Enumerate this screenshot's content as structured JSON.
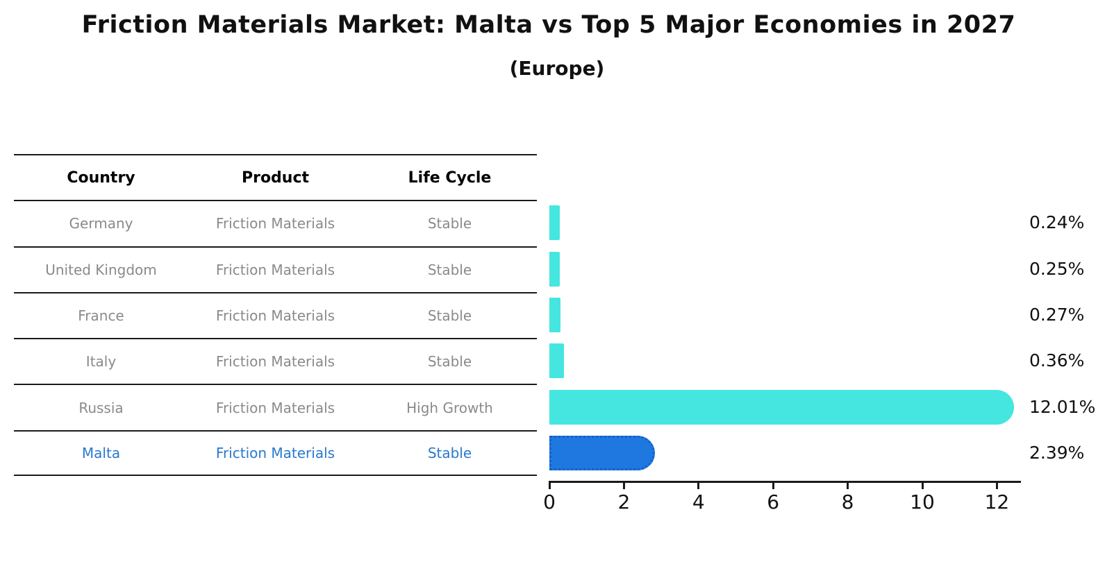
{
  "title": "Friction Materials Market: Malta vs Top 5 Major Economies in 2027",
  "subtitle": "(Europe)",
  "table": {
    "headers": [
      "Country",
      "Product",
      "Life Cycle"
    ],
    "rows": [
      {
        "country": "Germany",
        "product": "Friction Materials",
        "life_cycle": "Stable",
        "highlight": false
      },
      {
        "country": "United Kingdom",
        "product": "Friction Materials",
        "life_cycle": "Stable",
        "highlight": false
      },
      {
        "country": "France",
        "product": "Friction Materials",
        "life_cycle": "Stable",
        "highlight": false
      },
      {
        "country": "Italy",
        "product": "Friction Materials",
        "life_cycle": "Stable",
        "highlight": false
      },
      {
        "country": "Russia",
        "product": "Friction Materials",
        "life_cycle": "High Growth",
        "highlight": false
      },
      {
        "country": "Malta",
        "product": "Friction Materials",
        "life_cycle": "Stable",
        "highlight": true
      }
    ]
  },
  "chart_data": {
    "type": "bar",
    "orientation": "horizontal",
    "title": "Friction Materials Market: Malta vs Top 5 Major Economies in 2027 (Europe)",
    "categories": [
      "Germany",
      "United Kingdom",
      "France",
      "Italy",
      "Russia",
      "Malta"
    ],
    "values": [
      0.24,
      0.25,
      0.27,
      0.36,
      12.01,
      2.39
    ],
    "value_labels": [
      "0.24%",
      "0.25%",
      "0.27%",
      "0.36%",
      "12.01%",
      "2.39%"
    ],
    "highlight_index": 5,
    "xlim": [
      0,
      12.65
    ],
    "x_ticks": [
      0,
      2,
      4,
      6,
      8,
      10,
      12
    ],
    "grid": false,
    "legend": false
  },
  "colors": {
    "bar": "#45E6DF",
    "highlight_bar": "#1E78E0",
    "highlight_border": "#1560C8",
    "highlight_text": "#2878CE",
    "row_text": "#8a8a8a",
    "header_text": "#1a1a1a",
    "axis": "#1a1a1a"
  }
}
